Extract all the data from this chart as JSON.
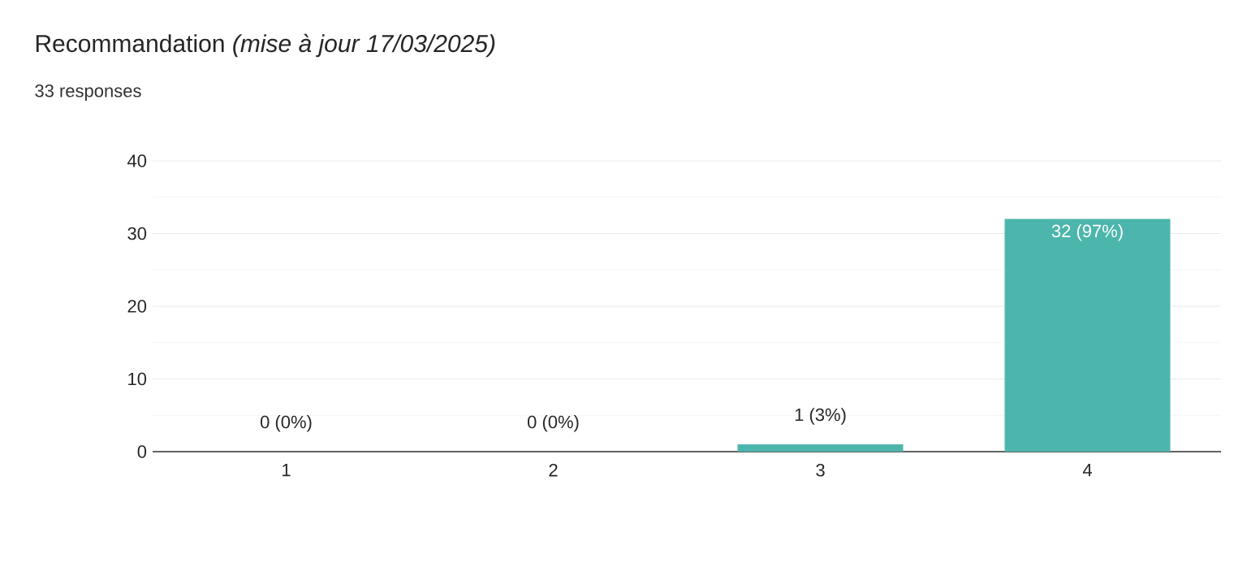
{
  "chart_data": {
    "type": "bar",
    "title": "Recommandation   *(mise à jour 17/03/2025)*",
    "subtitle": "33 responses",
    "categories": [
      "1",
      "2",
      "3",
      "4"
    ],
    "values": [
      0,
      0,
      1,
      32
    ],
    "value_labels": [
      "0 (0%)",
      "0 (0%)",
      "1 (3%)",
      "32 (97%)"
    ],
    "color": "#4db6ac",
    "ylim": [
      0,
      40
    ],
    "yticks": [
      0,
      10,
      20,
      30,
      40
    ],
    "grid": "y"
  }
}
